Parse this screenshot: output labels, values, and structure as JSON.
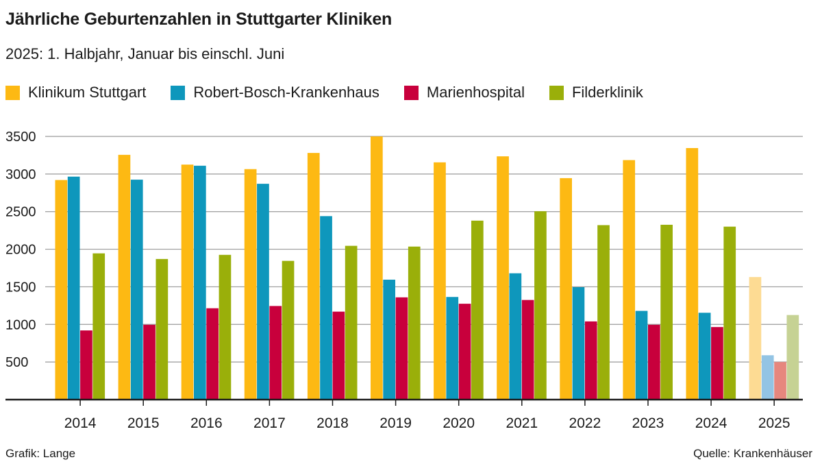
{
  "header": {
    "title": "Jährliche Geburtenzahlen in Stuttgarter Kliniken",
    "subtitle": "2025: 1. Halbjahr, Januar bis einschl. Juni"
  },
  "footer": {
    "credit": "Grafik: Lange",
    "source": "Quelle: Krankenhäuser"
  },
  "chart_data": {
    "type": "bar",
    "categories": [
      "2014",
      "2015",
      "2016",
      "2017",
      "2018",
      "2019",
      "2020",
      "2021",
      "2022",
      "2023",
      "2024",
      "2025"
    ],
    "series": [
      {
        "name": "Klinikum Stuttgart",
        "color": "#FDB913",
        "partial_color": "#FDDB93",
        "values": [
          2920,
          3255,
          3125,
          3065,
          3280,
          3500,
          3155,
          3235,
          2945,
          3185,
          3345,
          1630
        ]
      },
      {
        "name": "Robert-Bosch-Krankenhaus",
        "color": "#0E97BC",
        "partial_color": "#93C4E4",
        "values": [
          2965,
          2925,
          3110,
          2870,
          2440,
          1595,
          1365,
          1680,
          1495,
          1180,
          1155,
          590
        ]
      },
      {
        "name": "Marienhospital",
        "color": "#C8003C",
        "partial_color": "#E6877E",
        "values": [
          920,
          995,
          1215,
          1245,
          1170,
          1360,
          1275,
          1325,
          1040,
          995,
          965,
          500
        ]
      },
      {
        "name": "Filderklinik",
        "color": "#9AAF0A",
        "partial_color": "#C6D294",
        "values": [
          1945,
          1870,
          1925,
          1845,
          2045,
          2035,
          2380,
          2505,
          2320,
          2325,
          2300,
          1125
        ]
      }
    ],
    "partial_category": "2025",
    "yticks": [
      500,
      1000,
      1500,
      2000,
      2500,
      3000,
      3500
    ],
    "ylim": [
      0,
      3500
    ],
    "grid": true,
    "legend_position": "top-left",
    "xlabel": "",
    "ylabel": ""
  }
}
